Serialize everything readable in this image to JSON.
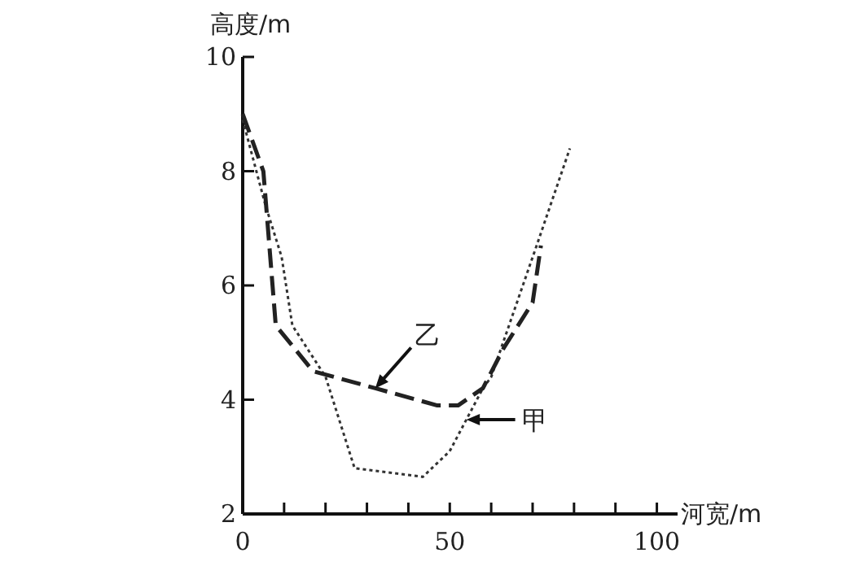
{
  "chart_data": {
    "type": "line",
    "ylabel": "高度/m",
    "xlabel": "河宽/m",
    "xlim": [
      0,
      105
    ],
    "ylim": [
      2,
      10
    ],
    "xticks": [
      0,
      {
        "value": 10,
        "label": null
      },
      {
        "value": 20,
        "label": null
      },
      {
        "value": 30,
        "label": null
      },
      {
        "value": 40,
        "label": null
      },
      50,
      {
        "value": 60,
        "label": null
      },
      {
        "value": 70,
        "label": null
      },
      {
        "value": 80,
        "label": null
      },
      {
        "value": 90,
        "label": null
      },
      100
    ],
    "yticks": [
      2,
      4,
      6,
      8,
      10
    ],
    "grid": false,
    "marker": "none",
    "annotations": [
      {
        "text": "甲",
        "x": 54,
        "y": 3.65
      },
      {
        "text": "乙",
        "x": 32,
        "y": 4.2
      }
    ],
    "series": [
      {
        "color": "#333333",
        "line_style": "dotted",
        "x": [
          0,
          5.5,
          9.4,
          12,
          20,
          27,
          43.5,
          50,
          58,
          60,
          71,
          79
        ],
        "values": [
          8.9,
          7.4,
          6.5,
          5.3,
          4.4,
          2.8,
          2.65,
          3.1,
          4.2,
          4.4,
          6.7,
          8.4
        ]
      },
      {
        "color": "#222222",
        "line_style": "dashed",
        "x": [
          0,
          5,
          8,
          17,
          32,
          47,
          52,
          58,
          63,
          70,
          72
        ],
        "values": [
          9.0,
          8.0,
          5.3,
          4.5,
          4.2,
          3.9,
          3.9,
          4.2,
          4.9,
          5.7,
          6.7
        ]
      }
    ]
  }
}
